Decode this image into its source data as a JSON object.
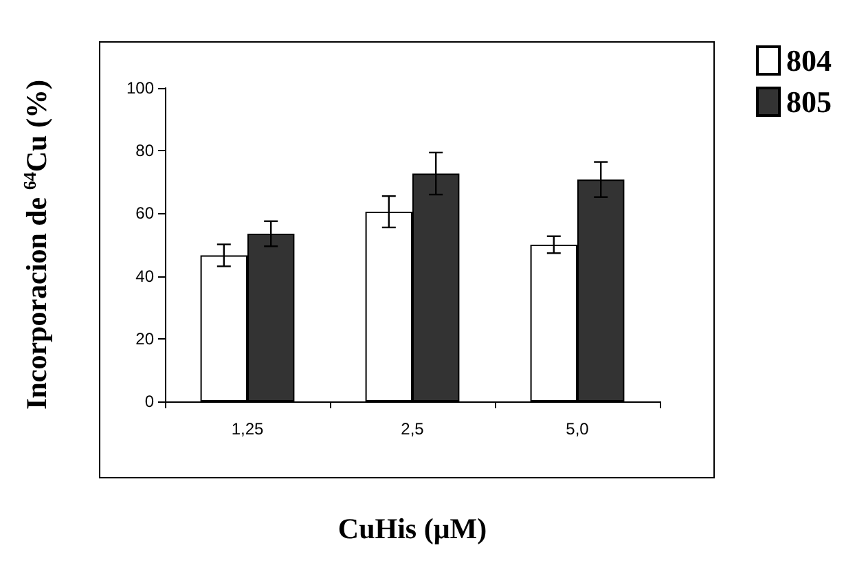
{
  "chart_data": {
    "type": "bar",
    "xlabel": "CuHis (μM)",
    "ylabel": "Incorporacion de $^{64}$Cu (%)",
    "categories": [
      "1,25",
      "2,5",
      "5,0"
    ],
    "series": [
      {
        "name": "804",
        "color": "#ffffff",
        "values": [
          46.6,
          60.5,
          50.0
        ],
        "errors": [
          3.5,
          5,
          2.7
        ]
      },
      {
        "name": "805",
        "color": "#333333",
        "values": [
          53.5,
          72.7,
          70.8
        ],
        "errors": [
          4,
          6.7,
          5.6
        ]
      }
    ],
    "ylim": [
      0,
      100
    ],
    "yticks": [
      0,
      20,
      40,
      60,
      80,
      100
    ],
    "grid": false,
    "legend": "right"
  }
}
